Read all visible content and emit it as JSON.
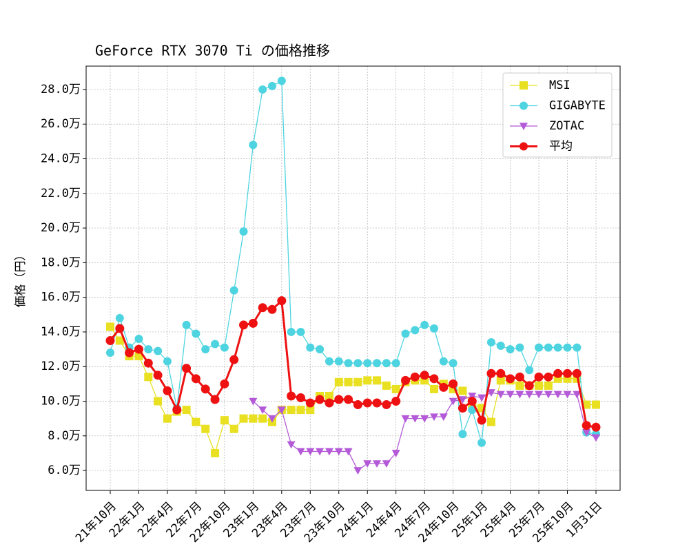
{
  "chart_data": {
    "type": "line",
    "title": "GeForce RTX 3070 Ti の価格推移",
    "y_label": "価格（円）",
    "categories": [
      "21年10月",
      null,
      null,
      "22年1月",
      null,
      null,
      "22年4月",
      null,
      null,
      "22年7月",
      null,
      null,
      "22年10月",
      null,
      null,
      "23年1月",
      null,
      null,
      "23年4月",
      null,
      null,
      "23年7月",
      null,
      null,
      "23年10月",
      null,
      null,
      "24年1月",
      null,
      null,
      "24年4月",
      null,
      null,
      "24年7月",
      null,
      null,
      "24年10月",
      null,
      null,
      "25年1月",
      null,
      null,
      "25年4月",
      null,
      null,
      "25年7月",
      null,
      null,
      "25年10月",
      null,
      null,
      "1月31日"
    ],
    "series": [
      {
        "name": "MSI",
        "color": "#e8e020",
        "marker": "square",
        "linewidth": 1.3,
        "values": [
          143000,
          135000,
          126000,
          126000,
          114000,
          100000,
          90000,
          94000,
          95000,
          88000,
          84000,
          70000,
          89000,
          84000,
          90000,
          90000,
          90000,
          88000,
          95000,
          95000,
          95000,
          95000,
          103000,
          103000,
          111000,
          111000,
          111000,
          112000,
          112000,
          109000,
          107000,
          111000,
          112000,
          112000,
          107000,
          110000,
          107000,
          106000,
          98000,
          96000,
          88000,
          112000,
          112000,
          109000,
          109000,
          109000,
          109000,
          113000,
          113000,
          113000,
          98000,
          98000
        ]
      },
      {
        "name": "GIGABYTE",
        "color": "#4dd4e0",
        "marker": "circle",
        "linewidth": 1.3,
        "values": [
          128000,
          148000,
          131000,
          136000,
          130000,
          129000,
          123000,
          96000,
          144000,
          139000,
          130000,
          133000,
          131000,
          164000,
          198000,
          248000,
          280000,
          282000,
          285000,
          140000,
          140000,
          131000,
          130000,
          123000,
          123000,
          122000,
          122000,
          122000,
          122000,
          122000,
          122000,
          139000,
          141000,
          144000,
          142000,
          123000,
          122000,
          81000,
          95000,
          76000,
          134000,
          132000,
          130000,
          131000,
          118000,
          131000,
          131000,
          131000,
          131000,
          131000,
          82000,
          81000
        ]
      },
      {
        "name": "ZOTAC",
        "color": "#b45ad8",
        "marker": "triangle-down",
        "linewidth": 1.3,
        "values": [
          null,
          null,
          null,
          null,
          null,
          null,
          null,
          null,
          null,
          null,
          null,
          null,
          null,
          null,
          null,
          100000,
          95000,
          90000,
          95000,
          75000,
          71000,
          71000,
          71000,
          71000,
          71000,
          71000,
          60000,
          64000,
          64000,
          64000,
          70000,
          90000,
          90000,
          90000,
          91000,
          91000,
          100000,
          101000,
          103000,
          102000,
          105000,
          104000,
          104000,
          104000,
          104000,
          104000,
          104000,
          104000,
          104000,
          104000,
          82000,
          79000
        ]
      },
      {
        "name": "平均",
        "color": "#ee1111",
        "marker": "circle",
        "linewidth": 3,
        "values": [
          135000,
          142000,
          128000,
          130000,
          122000,
          115000,
          106000,
          95000,
          119000,
          113000,
          107000,
          101000,
          110000,
          124000,
          144000,
          145000,
          154000,
          153000,
          158000,
          103000,
          102000,
          99000,
          101000,
          99000,
          101000,
          101000,
          98000,
          99000,
          99000,
          98000,
          100000,
          112000,
          114000,
          115000,
          113000,
          108000,
          110000,
          96000,
          100000,
          89000,
          116000,
          116000,
          113000,
          114000,
          109000,
          114000,
          114000,
          116000,
          116000,
          116000,
          86000,
          85000
        ]
      }
    ],
    "ylim": [
      48500,
      293500
    ],
    "yticks": [
      {
        "value": 60000,
        "label": "6.0万"
      },
      {
        "value": 80000,
        "label": "8.0万"
      },
      {
        "value": 100000,
        "label": "10.0万"
      },
      {
        "value": 120000,
        "label": "12.0万"
      },
      {
        "value": 140000,
        "label": "14.0万"
      },
      {
        "value": 160000,
        "label": "16.0万"
      },
      {
        "value": 180000,
        "label": "18.0万"
      },
      {
        "value": 200000,
        "label": "20.0万"
      },
      {
        "value": 220000,
        "label": "22.0万"
      },
      {
        "value": 240000,
        "label": "24.0万"
      },
      {
        "value": 260000,
        "label": "26.0万"
      },
      {
        "value": 280000,
        "label": "28.0万"
      }
    ],
    "grid": true,
    "legend": "upper right"
  }
}
